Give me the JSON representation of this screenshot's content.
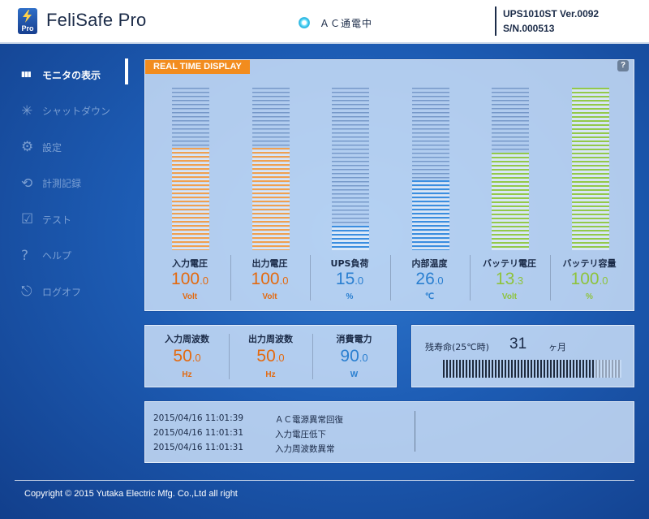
{
  "header": {
    "app_title": "FeliSafe Pro",
    "logo_badge": "Pro",
    "status_text": "ＡＣ通電中",
    "model": "UPS1010ST  Ver.0092",
    "serial": "S/N.000513"
  },
  "sidebar": {
    "items": [
      {
        "label": "モニタの表示",
        "icon": "bar-chart-icon",
        "active": true
      },
      {
        "label": "シャットダウン",
        "icon": "shutdown-icon",
        "active": false
      },
      {
        "label": "設定",
        "icon": "gear-icon",
        "active": false
      },
      {
        "label": "計測記録",
        "icon": "history-icon",
        "active": false
      },
      {
        "label": "テスト",
        "icon": "test-checklist-icon",
        "active": false
      },
      {
        "label": "ヘルプ",
        "icon": "question-icon",
        "active": false
      },
      {
        "label": "ログオフ",
        "icon": "logoff-icon",
        "active": false
      }
    ]
  },
  "realtime": {
    "label": "REAL TIME DISPLAY",
    "help": "?",
    "metrics": [
      {
        "label": "入力電圧",
        "int": "100",
        "dec": ".0",
        "unit": "Volt",
        "color": "#e36a10",
        "bar_color": "#f0a050",
        "level": 0.63
      },
      {
        "label": "出力電圧",
        "int": "100",
        "dec": ".0",
        "unit": "Volt",
        "color": "#e36a10",
        "bar_color": "#f0a050",
        "level": 0.63
      },
      {
        "label": "UPS負荷",
        "int": "15",
        "dec": ".0",
        "unit": "%",
        "color": "#2a7fd0",
        "bar_color": "#3b8ee0",
        "level": 0.15
      },
      {
        "label": "内部温度",
        "int": "26",
        "dec": ".0",
        "unit": "℃",
        "color": "#2a7fd0",
        "bar_color": "#3b8ee0",
        "level": 0.43
      },
      {
        "label": "バッテリ電圧",
        "int": "13",
        "dec": ".3",
        "unit": "Volt",
        "color": "#8ec33c",
        "bar_color": "#93c94a",
        "level": 0.6
      },
      {
        "label": "バッテリ容量",
        "int": "100",
        "dec": ".0",
        "unit": "%",
        "color": "#8ec33c",
        "bar_color": "#93c94a",
        "level": 1.0
      }
    ]
  },
  "frequency": {
    "metrics": [
      {
        "label": "入力周波数",
        "int": "50",
        "dec": ".0",
        "unit": "Hz",
        "color": "#e36a10"
      },
      {
        "label": "出力周波数",
        "int": "50",
        "dec": ".0",
        "unit": "Hz",
        "color": "#e36a10"
      },
      {
        "label": "消費電力",
        "int": "90",
        "dec": ".0",
        "unit": "W",
        "color": "#2a7fd0"
      }
    ]
  },
  "battery_life": {
    "label": "残寿命(25℃時)",
    "value": "31",
    "unit": "ヶ月",
    "level": 0.85
  },
  "log": [
    {
      "time": "2015/04/16 11:01:39",
      "message": "ＡＣ電源異常回復"
    },
    {
      "time": "2015/04/16 11:01:31",
      "message": "入力電圧低下"
    },
    {
      "time": "2015/04/16 11:01:31",
      "message": "入力周波数異常"
    }
  ],
  "footer": {
    "copyright": "Copyright © 2015 Yutaka Electric Mfg. Co.,Ltd all right"
  },
  "colors": {
    "accent": "#f28c1e",
    "background": "#1d5cb4"
  }
}
